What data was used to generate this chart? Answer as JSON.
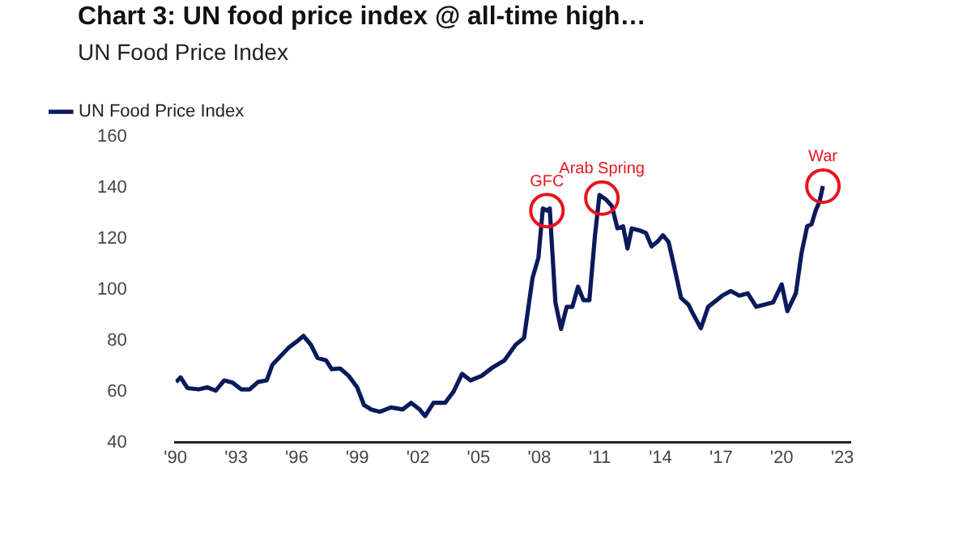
{
  "chart_data": {
    "type": "line",
    "title": "Chart 3: UN food price index @ all-time high…",
    "subtitle": "UN Food Price Index",
    "x": [
      1990.03,
      1990.25,
      1990.59,
      1991.15,
      1991.57,
      1991.99,
      1992.41,
      1992.83,
      1993.25,
      1993.67,
      1994.09,
      1994.51,
      1994.79,
      1995.21,
      1995.63,
      1995.99,
      1996.33,
      1996.7,
      1997.03,
      1997.45,
      1997.73,
      1998.15,
      1998.57,
      1998.99,
      1999.33,
      1999.69,
      2000.11,
      2000.67,
      2001.24,
      2001.66,
      2002.08,
      2002.35,
      2002.77,
      2003.34,
      2003.76,
      2004.18,
      2004.6,
      2005.15,
      2005.71,
      2006.28,
      2006.83,
      2007.25,
      2007.67,
      2007.96,
      2008.18,
      2008.38,
      2008.52,
      2008.8,
      2009.08,
      2009.36,
      2009.64,
      2009.92,
      2010.19,
      2010.48,
      2010.76,
      2010.98,
      2011.31,
      2011.6,
      2011.87,
      2012.15,
      2012.37,
      2012.58,
      2013.0,
      2013.28,
      2013.56,
      2013.84,
      2014.12,
      2014.4,
      2014.68,
      2015.02,
      2015.38,
      2015.66,
      2016.0,
      2016.36,
      2016.78,
      2017.06,
      2017.48,
      2017.9,
      2018.32,
      2018.74,
      2019.16,
      2019.58,
      2020.0,
      2020.28,
      2020.7,
      2020.98,
      2021.26,
      2021.48,
      2021.68,
      2021.87,
      2022.04
    ],
    "series": [
      {
        "name": "UN Food Price Index",
        "color": "#0a1a5c",
        "values": [
          63.8,
          65.6,
          61.4,
          60.9,
          61.7,
          60.4,
          64.4,
          63.5,
          60.9,
          60.9,
          63.8,
          64.4,
          70.5,
          74.0,
          77.5,
          79.6,
          81.9,
          78.4,
          73.2,
          72.3,
          68.8,
          69.1,
          66.2,
          61.7,
          54.7,
          53.0,
          52.1,
          53.8,
          53.0,
          55.6,
          53.0,
          50.4,
          55.6,
          55.6,
          60.0,
          67.0,
          64.4,
          66.2,
          69.6,
          72.3,
          78.4,
          81.1,
          104.7,
          112.6,
          131.9,
          131.1,
          131.9,
          95.1,
          84.6,
          93.3,
          93.3,
          101.2,
          95.9,
          95.9,
          121.4,
          137.2,
          135.4,
          132.8,
          124.1,
          124.9,
          116.2,
          124.1,
          123.2,
          122.3,
          117.0,
          118.8,
          121.4,
          118.8,
          109.1,
          96.8,
          94.2,
          89.8,
          84.9,
          93.3,
          95.9,
          97.7,
          99.5,
          97.7,
          98.6,
          93.3,
          94.2,
          95.1,
          102.1,
          91.6,
          98.6,
          114.4,
          124.9,
          125.8,
          131.1,
          134.6,
          140.7
        ]
      }
    ],
    "xlim": [
      1990,
      2023.4
    ],
    "xticks": [
      {
        "value": 1990,
        "label": "'90"
      },
      {
        "value": 1993,
        "label": "'93"
      },
      {
        "value": 1996,
        "label": "'96"
      },
      {
        "value": 1999,
        "label": "'99"
      },
      {
        "value": 2002,
        "label": "'02"
      },
      {
        "value": 2005,
        "label": "'05"
      },
      {
        "value": 2008,
        "label": "'08"
      },
      {
        "value": 2011,
        "label": "'11"
      },
      {
        "value": 2014,
        "label": "'14"
      },
      {
        "value": 2017,
        "label": "'17"
      },
      {
        "value": 2020,
        "label": "'20"
      },
      {
        "value": 2023,
        "label": "'23"
      }
    ],
    "ylim": [
      40,
      160
    ],
    "yticks": [
      40,
      60,
      80,
      100,
      120,
      140,
      160
    ],
    "grid": false,
    "legend": "top left",
    "marker": "none",
    "line_style": "solid",
    "annotations": [
      {
        "text": "GFC",
        "x": 2008.38,
        "y": 131.1
      },
      {
        "text": "Arab Spring",
        "x": 2011.1,
        "y": 136
      },
      {
        "text": "War",
        "x": 2022.04,
        "y": 140.7
      }
    ]
  }
}
